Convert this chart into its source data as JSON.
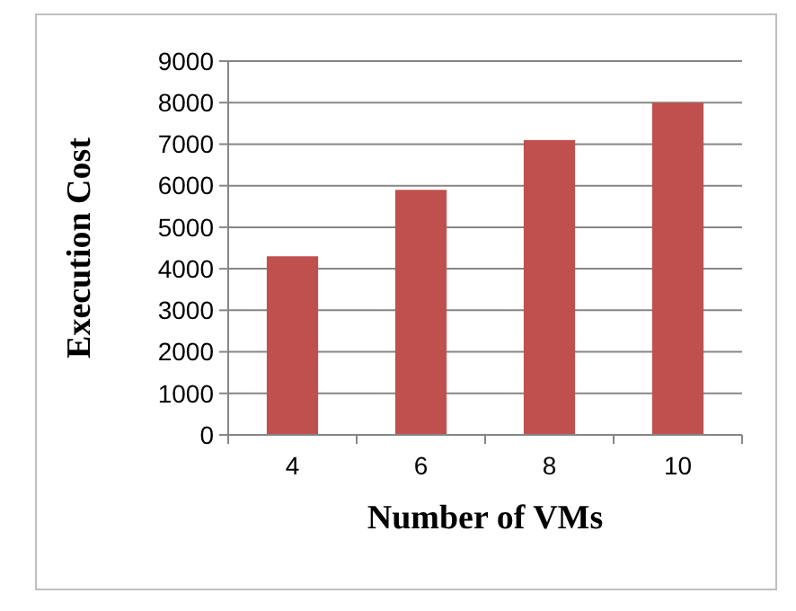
{
  "chart_data": {
    "type": "bar",
    "xlabel": "Number of VMs",
    "ylabel": "Execution Cost",
    "categories": [
      "4",
      "6",
      "8",
      "10"
    ],
    "values": [
      4300,
      5900,
      7100,
      8000
    ],
    "color": "#c0504d",
    "ylim": [
      0,
      9000
    ],
    "yticks": [
      0,
      1000,
      2000,
      3000,
      4000,
      5000,
      6000,
      7000,
      8000,
      9000
    ],
    "grid": "y"
  }
}
